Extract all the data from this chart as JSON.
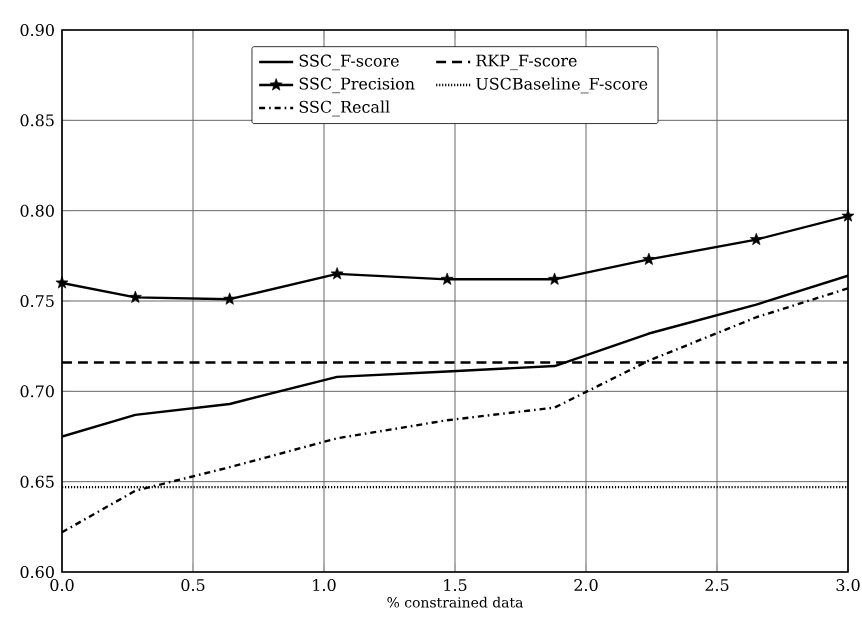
{
  "chart_data": {
    "type": "line",
    "xlabel": "% constrained data",
    "xlim": [
      0.0,
      3.0
    ],
    "xticks": [
      {
        "value": 0,
        "label": "0.0"
      },
      0.5,
      {
        "value": 1,
        "label": "1.0"
      },
      1.5,
      {
        "value": 2,
        "label": "2.0"
      },
      2.5,
      {
        "value": 3,
        "label": "3.0"
      }
    ],
    "ylim": [
      0.6,
      0.9
    ],
    "yticks": [
      {
        "value": 0.6,
        "label": "0.60"
      },
      0.65,
      {
        "value": 0.7,
        "label": "0.70"
      },
      0.75,
      {
        "value": 0.8,
        "label": "0.80"
      },
      0.85,
      {
        "value": 0.9,
        "label": "0.90"
      }
    ],
    "grid": true,
    "legend": "top",
    "series": [
      {
        "name": "SSC_F-score",
        "color": "#000000",
        "line_style": "solid",
        "marker": "none",
        "x": [
          0,
          0.28,
          0.64,
          1.05,
          1.47,
          1.88,
          2.24,
          2.65,
          3.0
        ],
        "values": [
          0.675,
          0.687,
          0.693,
          0.708,
          0.711,
          0.714,
          0.732,
          0.748,
          0.764
        ]
      },
      {
        "name": "SSC_Precision",
        "color": "#000000",
        "line_style": "solid",
        "marker": "star",
        "x": [
          0,
          0.28,
          0.64,
          1.05,
          1.47,
          1.88,
          2.24,
          2.65,
          3.0
        ],
        "values": [
          0.76,
          0.752,
          0.751,
          0.765,
          0.762,
          0.762,
          0.773,
          0.784,
          0.797
        ]
      },
      {
        "name": "SSC_Recall",
        "color": "#000000",
        "line_style": "dashdot",
        "marker": "none",
        "x": [
          0,
          0.28,
          0.64,
          1.05,
          1.47,
          1.88,
          2.24,
          2.65,
          3.0
        ],
        "values": [
          0.622,
          0.645,
          0.658,
          0.674,
          0.684,
          0.691,
          0.717,
          0.741,
          0.757
        ]
      },
      {
        "name": "RKP_F-score",
        "color": "#000000",
        "line_style": "dashed",
        "marker": "none",
        "x": [
          0,
          3.0
        ],
        "values": [
          0.716,
          0.716
        ]
      },
      {
        "name": "USCBaseline_F-score",
        "color": "#000000",
        "line_style": "dotted",
        "marker": "none",
        "x": [
          0,
          3.0
        ],
        "values": [
          0.647,
          0.647
        ]
      }
    ]
  }
}
